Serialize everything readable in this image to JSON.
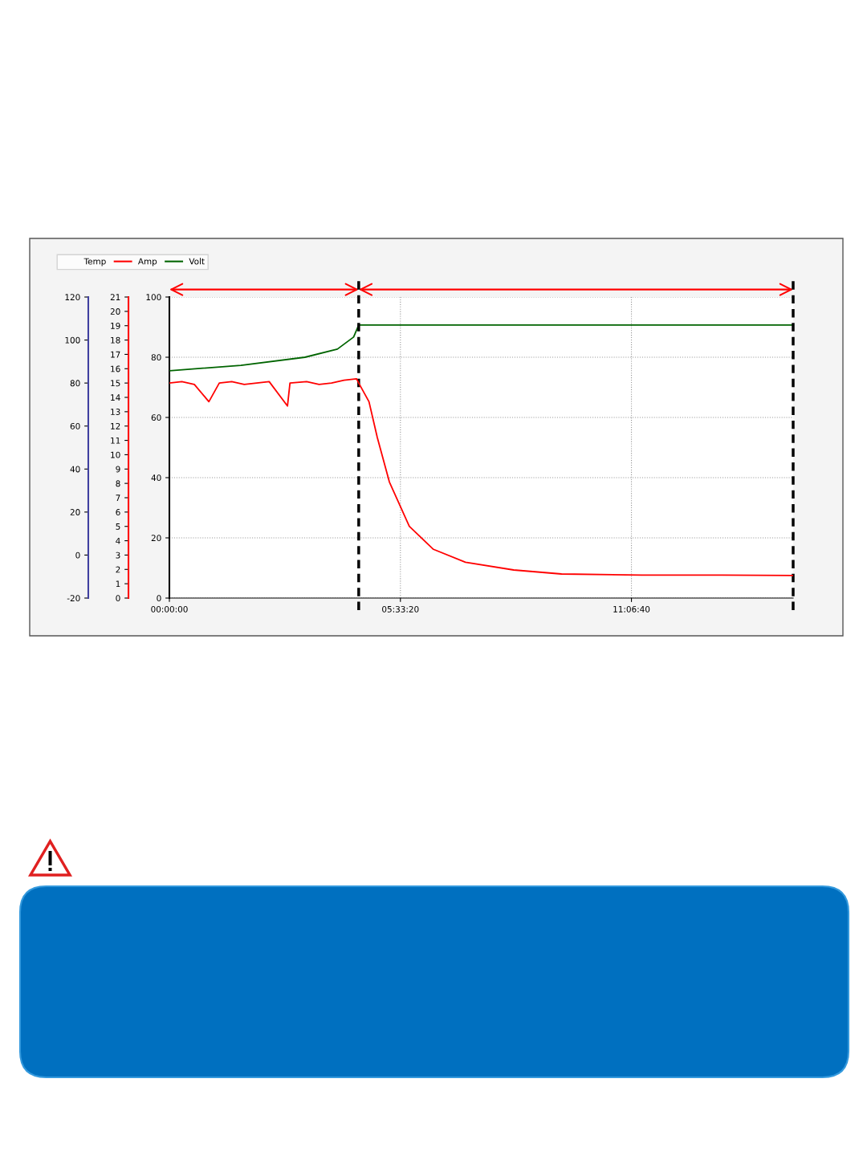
{
  "chart_data": {
    "type": "line",
    "xlim": [
      0,
      15
    ],
    "xticks": [
      {
        "value": 0,
        "label": "00:00:00"
      },
      {
        "value": 5.5556,
        "label": "05:33:20"
      },
      {
        "value": 11.1111,
        "label": "11:06:40"
      }
    ],
    "ylim": [
      0,
      100
    ],
    "yticks": [
      0,
      20,
      40,
      60,
      80,
      100
    ],
    "y3lim": [
      0,
      21
    ],
    "y3ticks": [
      0,
      1,
      2,
      3,
      4,
      5,
      6,
      7,
      8,
      9,
      10,
      11,
      12,
      13,
      14,
      15,
      16,
      17,
      18,
      19,
      20,
      21
    ],
    "y2lim": [
      -20,
      120
    ],
    "y2ticks": [
      -20,
      0,
      20,
      40,
      60,
      80,
      100,
      120
    ],
    "grid": true,
    "legend": "top left",
    "marker": "none",
    "line_style": "solid",
    "series": [
      {
        "name": "Temp",
        "color": null,
        "axis": "y2"
      },
      {
        "name": "Amp",
        "color": "#ff0000",
        "axis": "y3",
        "x": [
          0,
          0.3,
          0.6,
          0.95,
          1.2,
          1.5,
          1.8,
          2.1,
          2.4,
          2.84,
          2.9,
          3.3,
          3.6,
          3.9,
          4.2,
          4.5,
          4.553,
          4.8,
          5.0,
          5.29,
          5.77,
          6.35,
          7.12,
          8.28,
          9.43,
          11.36,
          13.29,
          14.99
        ],
        "values": [
          15.0,
          15.1,
          14.9,
          13.7,
          15.0,
          15.1,
          14.9,
          15.0,
          15.1,
          13.4,
          15.0,
          15.1,
          14.9,
          15.0,
          15.2,
          15.3,
          15.0,
          13.7,
          11.2,
          8.1,
          5.0,
          3.4,
          2.5,
          1.96,
          1.68,
          1.6,
          1.6,
          1.57
        ]
      },
      {
        "name": "Volt",
        "color": "#006400",
        "axis": "y",
        "x": [
          0,
          1.72,
          3.26,
          4.04,
          4.43,
          4.553,
          15
        ],
        "values": [
          75.5,
          77.3,
          80,
          82.7,
          86.7,
          90.7,
          90.7
        ]
      }
    ],
    "ref_lines": [
      {
        "axis": "x",
        "value": 4.553,
        "color": "#000000",
        "line_style": "dashed"
      },
      {
        "axis": "x",
        "value": 15,
        "color": "#000000",
        "line_style": "dashed"
      }
    ]
  }
}
